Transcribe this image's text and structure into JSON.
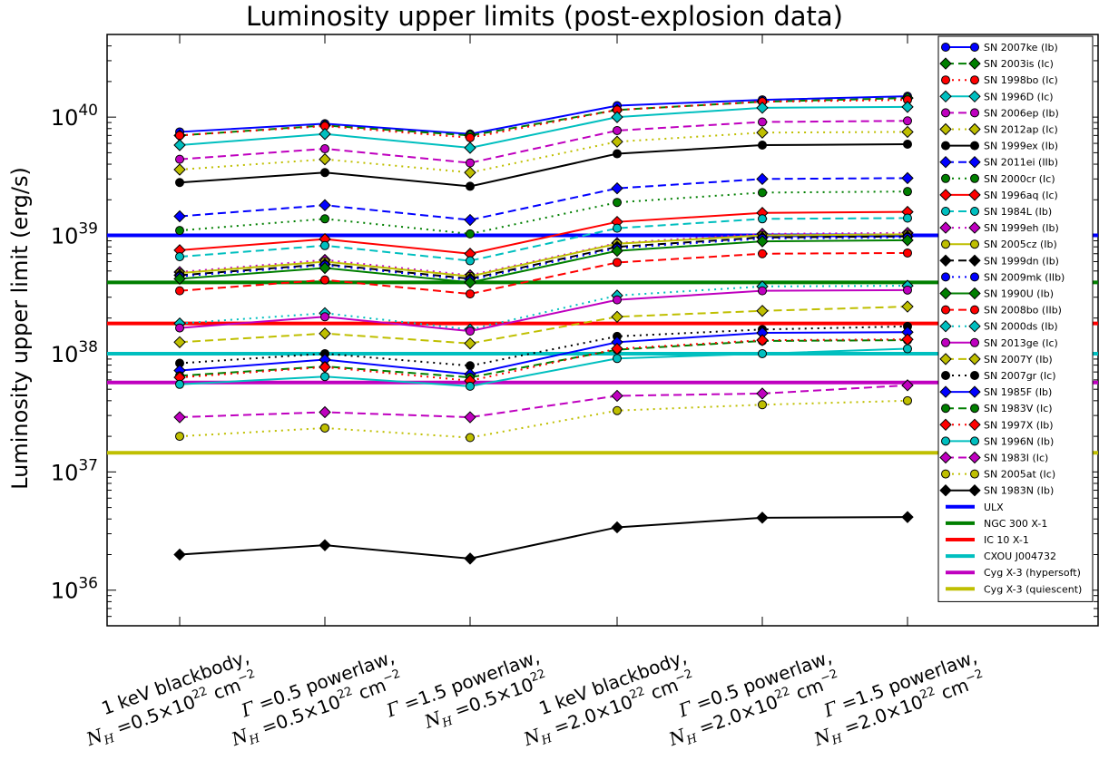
{
  "chart_data": {
    "type": "line",
    "title": "Luminosity upper limits (post-explosion data)",
    "ylabel": "Luminosity upper limit (erg/s)",
    "xlabel": "",
    "yscale": "log",
    "ylim": [
      5e+35,
      5e+40
    ],
    "yticks": [
      {
        "value": 1e+36,
        "base": "10",
        "exp": "36"
      },
      {
        "value": 1e+37,
        "base": "10",
        "exp": "37"
      },
      {
        "value": 1e+38,
        "base": "10",
        "exp": "38"
      },
      {
        "value": 1e+39,
        "base": "10",
        "exp": "39"
      },
      {
        "value": 1e+40,
        "base": "10",
        "exp": "40"
      }
    ],
    "categories": [
      {
        "line1": "1 keV blackbody,",
        "line2": "N_H = 0.5×10^22 cm^-2"
      },
      {
        "line1": "Γ = 0.5 powerlaw,",
        "line2": "N_H = 0.5×10^22 cm^-2"
      },
      {
        "line1": "Γ = 1.5 powerlaw,",
        "line2": "N_H = 0.5×10^22"
      },
      {
        "line1": "1 keV blackbody,",
        "line2": "N_H = 2.0×10^22 cm^-2"
      },
      {
        "line1": "Γ = 0.5 powerlaw,",
        "line2": "N_H = 2.0×10^22 cm^-2"
      },
      {
        "line1": "Γ = 1.5 powerlaw,",
        "line2": "N_H = 2.0×10^22 cm^-2"
      }
    ],
    "legend_position": "right",
    "series": [
      {
        "name": "SN 2007ke (Ib)",
        "color": "#0000ff",
        "marker": "circle",
        "linestyle": "solid",
        "values": [
          7.5e+39,
          8.8e+39,
          7.2e+39,
          1.25e+40,
          1.4e+40,
          1.5e+40
        ]
      },
      {
        "name": "SN 2003is (Ic)",
        "color": "#007f00",
        "marker": "diamond",
        "linestyle": "dashed",
        "values": [
          7e+39,
          8.5e+39,
          7e+39,
          1.15e+40,
          1.35e+40,
          1.45e+40
        ]
      },
      {
        "name": "SN 1998bo (Ic)",
        "color": "#ff0000",
        "marker": "circle",
        "linestyle": "dotted",
        "values": [
          7e+39,
          8.4e+39,
          6.7e+39,
          1.15e+40,
          1.35e+40,
          1.4e+40
        ]
      },
      {
        "name": "SN 1996D (Ic)",
        "color": "#00bfbf",
        "marker": "diamond",
        "linestyle": "solid",
        "values": [
          5.8e+39,
          7.2e+39,
          5.5e+39,
          1e+40,
          1.2e+40,
          1.22e+40
        ]
      },
      {
        "name": "SN 2006ep (Ib)",
        "color": "#bf00bf",
        "marker": "circle",
        "linestyle": "dashed",
        "values": [
          4.4e+39,
          5.4e+39,
          4.1e+39,
          7.7e+39,
          9.1e+39,
          9.3e+39
        ]
      },
      {
        "name": "SN 2012ap (Ic)",
        "color": "#bfbf00",
        "marker": "diamond",
        "linestyle": "dotted",
        "values": [
          3.6e+39,
          4.4e+39,
          3.4e+39,
          6.2e+39,
          7.4e+39,
          7.5e+39
        ]
      },
      {
        "name": "SN 1999ex (Ib)",
        "color": "#000000",
        "marker": "circle",
        "linestyle": "solid",
        "values": [
          2.8e+39,
          3.4e+39,
          2.6e+39,
          4.9e+39,
          5.8e+39,
          5.9e+39
        ]
      },
      {
        "name": "SN 2011ei (IIb)",
        "color": "#0000ff",
        "marker": "diamond",
        "linestyle": "dashed",
        "values": [
          1.45e+39,
          1.8e+39,
          1.35e+39,
          2.5e+39,
          3e+39,
          3.05e+39
        ]
      },
      {
        "name": "SN 2000cr (Ic)",
        "color": "#007f00",
        "marker": "circle",
        "linestyle": "dotted",
        "values": [
          1.1e+39,
          1.38e+39,
          1.03e+39,
          1.9e+39,
          2.3e+39,
          2.35e+39
        ]
      },
      {
        "name": "SN 1996aq (Ic)",
        "color": "#ff0000",
        "marker": "diamond",
        "linestyle": "solid",
        "values": [
          7.5e+38,
          9.3e+38,
          7e+38,
          1.3e+39,
          1.55e+39,
          1.58e+39
        ]
      },
      {
        "name": "SN 1984L (Ib)",
        "color": "#00bfbf",
        "marker": "circle",
        "linestyle": "dashed",
        "values": [
          6.6e+38,
          8.2e+38,
          6.1e+38,
          1.15e+39,
          1.38e+39,
          1.4e+39
        ]
      },
      {
        "name": "SN 1999eh (Ib)",
        "color": "#bf00bf",
        "marker": "diamond",
        "linestyle": "dotted",
        "values": [
          4.9e+38,
          6.2e+38,
          4.6e+38,
          8.6e+38,
          1.03e+39,
          1.05e+39
        ]
      },
      {
        "name": "SN 2005cz (Ib)",
        "color": "#bfbf00",
        "marker": "circle",
        "linestyle": "solid",
        "values": [
          4.8e+38,
          6e+38,
          4.5e+38,
          8.5e+38,
          1e+39,
          1.02e+39
        ]
      },
      {
        "name": "SN 1999dn (Ib)",
        "color": "#000000",
        "marker": "diamond",
        "linestyle": "dashed",
        "values": [
          4.6e+38,
          5.7e+38,
          4.3e+38,
          8e+38,
          9.6e+38,
          9.8e+38
        ]
      },
      {
        "name": "SN 2009mk (IIb)",
        "color": "#0000ff",
        "marker": "circle",
        "linestyle": "dotted",
        "values": [
          4.5e+38,
          5.6e+38,
          4.2e+38,
          7.8e+38,
          9.4e+38,
          9.6e+38
        ]
      },
      {
        "name": "SN 1990U (Ib)",
        "color": "#007f00",
        "marker": "diamond",
        "linestyle": "solid",
        "values": [
          4.3e+38,
          5.3e+38,
          4e+38,
          7.4e+38,
          8.9e+38,
          9.1e+38
        ]
      },
      {
        "name": "SN 2008bo (IIb)",
        "color": "#ff0000",
        "marker": "circle",
        "linestyle": "dashed",
        "values": [
          3.4e+38,
          4.2e+38,
          3.2e+38,
          5.9e+38,
          7e+38,
          7.1e+38
        ]
      },
      {
        "name": "SN 2000ds (Ib)",
        "color": "#00bfbf",
        "marker": "diamond",
        "linestyle": "dotted",
        "values": [
          1.8e+38,
          2.2e+38,
          1.6e+38,
          3.1e+38,
          3.7e+38,
          3.75e+38
        ]
      },
      {
        "name": "SN 2013ge (Ic)",
        "color": "#bf00bf",
        "marker": "circle",
        "linestyle": "solid",
        "values": [
          1.65e+38,
          2.05e+38,
          1.55e+38,
          2.85e+38,
          3.4e+38,
          3.45e+38
        ]
      },
      {
        "name": "SN 2007Y (Ib)",
        "color": "#bfbf00",
        "marker": "diamond",
        "linestyle": "dashed",
        "values": [
          1.25e+38,
          1.48e+38,
          1.22e+38,
          2.05e+38,
          2.3e+38,
          2.5e+38
        ]
      },
      {
        "name": "SN 2007gr (Ic)",
        "color": "#000000",
        "marker": "circle",
        "linestyle": "dotted",
        "values": [
          8.3e+37,
          1e+38,
          7.9e+37,
          1.4e+38,
          1.6e+38,
          1.7e+38
        ]
      },
      {
        "name": "SN 1985F (Ib)",
        "color": "#0000ff",
        "marker": "diamond",
        "linestyle": "solid",
        "values": [
          7.2e+37,
          8.9e+37,
          6.7e+37,
          1.25e+38,
          1.5e+38,
          1.52e+38
        ]
      },
      {
        "name": "SN 1983V (Ic)",
        "color": "#007f00",
        "marker": "circle",
        "linestyle": "dashed",
        "values": [
          6.5e+37,
          7.8e+37,
          6.3e+37,
          1.08e+38,
          1.28e+38,
          1.3e+38
        ]
      },
      {
        "name": "SN 1997X (Ib)",
        "color": "#ff0000",
        "marker": "diamond",
        "linestyle": "dotted",
        "values": [
          6.3e+37,
          7.7e+37,
          5.9e+37,
          1.1e+38,
          1.3e+38,
          1.32e+38
        ]
      },
      {
        "name": "SN 1996N (Ib)",
        "color": "#00bfbf",
        "marker": "circle",
        "linestyle": "solid",
        "values": [
          5.5e+37,
          6.4e+37,
          5.3e+37,
          9.1e+37,
          1e+38,
          1.1e+38
        ]
      },
      {
        "name": "SN 1983I (Ic)",
        "color": "#bf00bf",
        "marker": "diamond",
        "linestyle": "dashed",
        "values": [
          2.9e+37,
          3.2e+37,
          2.9e+37,
          4.4e+37,
          4.6e+37,
          5.4e+37
        ]
      },
      {
        "name": "SN 2005at (Ic)",
        "color": "#bfbf00",
        "marker": "circle",
        "linestyle": "dotted",
        "values": [
          2e+37,
          2.35e+37,
          1.95e+37,
          3.3e+37,
          3.7e+37,
          4e+37
        ]
      },
      {
        "name": "SN 1983N (Ib)",
        "color": "#000000",
        "marker": "diamond",
        "linestyle": "solid",
        "values": [
          2e+36,
          2.4e+36,
          1.85e+36,
          3.4e+36,
          4.1e+36,
          4.15e+36
        ]
      }
    ],
    "hlines": [
      {
        "name": "ULX",
        "color": "#0000ff",
        "value": 1e+39
      },
      {
        "name": "NGC 300 X-1",
        "color": "#007f00",
        "value": 4e+38
      },
      {
        "name": "IC 10 X-1",
        "color": "#ff0000",
        "value": 1.8e+38
      },
      {
        "name": "CXOU J004732",
        "color": "#00bfbf",
        "value": 1e+38
      },
      {
        "name": "Cyg X-3 (hypersoft)",
        "color": "#bf00bf",
        "value": 5.7e+37
      },
      {
        "name": "Cyg X-3 (quiescent)",
        "color": "#bfbf00",
        "value": 1.45e+37
      }
    ]
  }
}
